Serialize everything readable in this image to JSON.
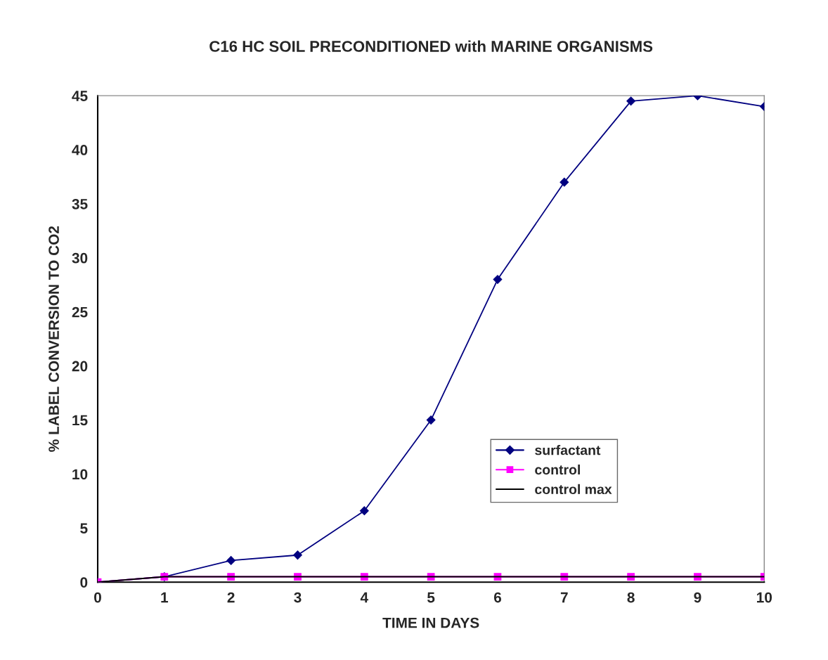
{
  "chart_data": {
    "type": "line",
    "title": "C16 HC SOIL PRECONDITIONED with MARINE ORGANISMS",
    "xlabel": "TIME IN DAYS",
    "ylabel": "% LABEL CONVERSION TO CO2",
    "x": [
      0,
      1,
      2,
      3,
      4,
      5,
      6,
      7,
      8,
      9,
      10
    ],
    "series": [
      {
        "name": "surfactant",
        "color": "#000080",
        "marker": "diamond",
        "values": [
          0,
          0.5,
          2.0,
          2.5,
          6.6,
          15.0,
          28.0,
          37.0,
          44.5,
          45.0,
          44.0
        ]
      },
      {
        "name": "control",
        "color": "#ff00ff",
        "marker": "square",
        "values": [
          0,
          0.5,
          0.5,
          0.5,
          0.5,
          0.5,
          0.5,
          0.5,
          0.5,
          0.5,
          0.5
        ]
      },
      {
        "name": "control max",
        "color": "#000000",
        "marker": "none",
        "values": [
          0,
          0.5,
          0.5,
          0.5,
          0.5,
          0.5,
          0.5,
          0.5,
          0.5,
          0.5,
          0.5
        ]
      }
    ],
    "xlim": [
      0,
      10
    ],
    "xticks": [
      0,
      1,
      2,
      3,
      4,
      5,
      6,
      7,
      8,
      9,
      10
    ],
    "ylim": [
      0,
      45
    ],
    "yticks": [
      0,
      5,
      10,
      15,
      20,
      25,
      30,
      35,
      40,
      45
    ],
    "grid": false,
    "legend": "bottom right",
    "line_style": "solid"
  }
}
